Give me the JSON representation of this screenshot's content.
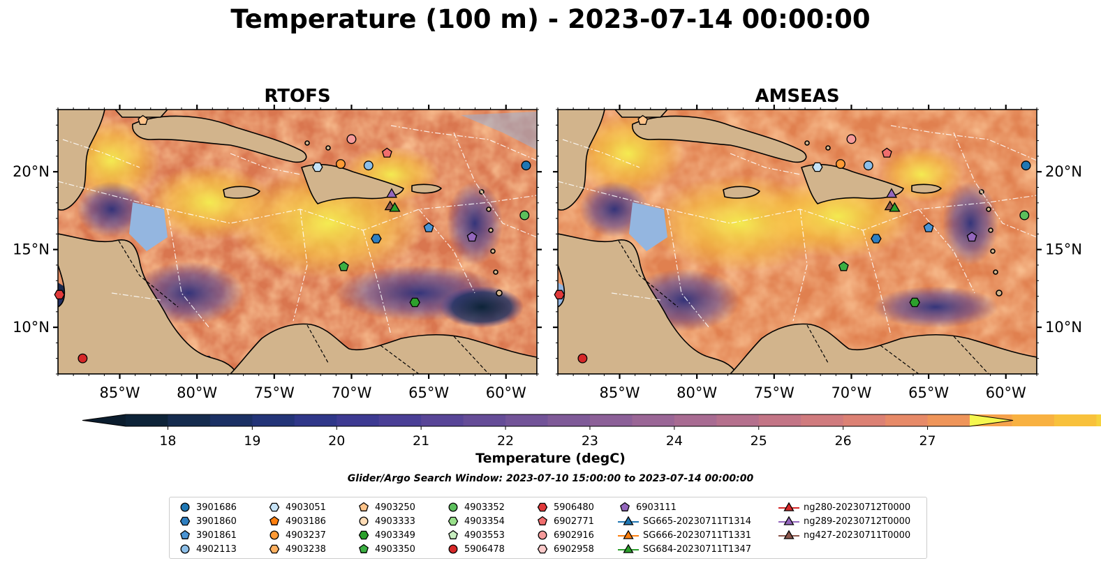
{
  "figure": {
    "title": "Temperature (100 m) - 2023-07-14 00:00:00",
    "search_window": "Glider/Argo Search Window: 2023-07-10 15:00:00 to 2023-07-14 00:00:00"
  },
  "chart_data": [
    {
      "type": "heatmap",
      "title": "RTOFS",
      "variable": "Temperature (degC)",
      "x_ticks": [
        "85°W",
        "80°W",
        "75°W",
        "70°W",
        "65°W",
        "60°W"
      ],
      "y_ticks": [
        "10°N",
        "15°N",
        "20°N"
      ],
      "x_tick_values": [
        -85,
        -80,
        -75,
        -70,
        -65,
        -60
      ],
      "y_tick_values": [
        10,
        15,
        20
      ],
      "xlim": [
        -89,
        -58
      ],
      "ylim": [
        7,
        24
      ],
      "y_axis_side": "left",
      "markers": [
        {
          "id": "3901686",
          "lon": -58.7,
          "lat": 20.4
        },
        {
          "id": "4902113",
          "lon": -68.9,
          "lat": 20.4
        },
        {
          "id": "4903237",
          "lon": -70.7,
          "lat": 20.5
        },
        {
          "id": "6902916",
          "lon": -70.0,
          "lat": 22.1
        },
        {
          "id": "4903051",
          "lon": -72.2,
          "lat": 20.3
        },
        {
          "id": "4903250",
          "lon": -83.5,
          "lat": 23.3
        },
        {
          "id": "6902771",
          "lon": -67.7,
          "lat": 21.2
        },
        {
          "id": "6903111",
          "lon": -62.2,
          "lat": 15.8
        },
        {
          "id": "3901861",
          "lon": -65.0,
          "lat": 16.4
        },
        {
          "id": "3901860",
          "lon": -68.4,
          "lat": 15.7
        },
        {
          "id": "4903350",
          "lon": -70.5,
          "lat": 13.9
        },
        {
          "id": "4903349",
          "lon": -65.9,
          "lat": 11.6
        },
        {
          "id": "4903352",
          "lon": -58.8,
          "lat": 17.2
        },
        {
          "id": "5906478",
          "lon": -87.4,
          "lat": 8.0
        },
        {
          "id": "5906480",
          "lon": -88.9,
          "lat": 12.1
        },
        {
          "id": "ng289-20230712T0000",
          "lon": -67.4,
          "lat": 18.6
        },
        {
          "id": "ng427-20230711T0000",
          "lon": -67.5,
          "lat": 17.8
        },
        {
          "id": "SG684-20230711T1347",
          "lon": -67.2,
          "lat": 17.7
        }
      ]
    },
    {
      "type": "heatmap",
      "title": "AMSEAS",
      "variable": "Temperature (degC)",
      "x_ticks": [
        "85°W",
        "80°W",
        "75°W",
        "70°W",
        "65°W",
        "60°W"
      ],
      "y_ticks": [
        "10°N",
        "15°N",
        "20°N"
      ],
      "x_tick_values": [
        -85,
        -80,
        -75,
        -70,
        -65,
        -60
      ],
      "y_tick_values": [
        10,
        15,
        20
      ],
      "xlim": [
        -89,
        -58
      ],
      "ylim": [
        7,
        24
      ],
      "y_axis_side": "right",
      "markers": [
        {
          "id": "3901686",
          "lon": -58.7,
          "lat": 20.4
        },
        {
          "id": "4902113",
          "lon": -68.9,
          "lat": 20.4
        },
        {
          "id": "4903237",
          "lon": -70.7,
          "lat": 20.5
        },
        {
          "id": "6902916",
          "lon": -70.0,
          "lat": 22.1
        },
        {
          "id": "4903051",
          "lon": -72.2,
          "lat": 20.3
        },
        {
          "id": "4903250",
          "lon": -83.5,
          "lat": 23.3
        },
        {
          "id": "6902771",
          "lon": -67.7,
          "lat": 21.2
        },
        {
          "id": "6903111",
          "lon": -62.2,
          "lat": 15.8
        },
        {
          "id": "3901861",
          "lon": -65.0,
          "lat": 16.4
        },
        {
          "id": "3901860",
          "lon": -68.4,
          "lat": 15.7
        },
        {
          "id": "4903350",
          "lon": -70.5,
          "lat": 13.9
        },
        {
          "id": "4903349",
          "lon": -65.9,
          "lat": 11.6
        },
        {
          "id": "4903352",
          "lon": -58.8,
          "lat": 17.2
        },
        {
          "id": "5906478",
          "lon": -87.4,
          "lat": 8.0
        },
        {
          "id": "5906480",
          "lon": -88.9,
          "lat": 12.1
        },
        {
          "id": "ng289-20230712T0000",
          "lon": -67.4,
          "lat": 18.6
        },
        {
          "id": "ng427-20230711T0000",
          "lon": -67.5,
          "lat": 17.8
        },
        {
          "id": "SG684-20230711T1347",
          "lon": -67.2,
          "lat": 17.7
        }
      ]
    }
  ],
  "colorbar": {
    "label": "Temperature (degC)",
    "min": 17.5,
    "max": 27.5,
    "step": 0.5,
    "ticks": [
      "18",
      "19",
      "20",
      "21",
      "22",
      "23",
      "24",
      "25",
      "26",
      "27"
    ],
    "tick_values": [
      18,
      19,
      20,
      21,
      22,
      23,
      24,
      25,
      26,
      27
    ],
    "colors": [
      "#0d2338",
      "#152b4e",
      "#1b3064",
      "#233478",
      "#2f3789",
      "#3d3a92",
      "#4a3f96",
      "#584597",
      "#654c97",
      "#725398",
      "#7f5a98",
      "#8c6098",
      "#9a6696",
      "#a86b92",
      "#b5708d",
      "#c37586",
      "#d07b7e",
      "#dc8174",
      "#e78a68",
      "#ef955a",
      "#f5a24c",
      "#f8b141",
      "#f8c13c",
      "#f6d23e",
      "#f1e445"
    ]
  },
  "legend": {
    "columns": [
      [
        {
          "label": "3901686",
          "marker": "circle",
          "color": "#1f77b4"
        },
        {
          "label": "3901860",
          "marker": "hexagon",
          "color": "#2f7fc0"
        },
        {
          "label": "3901861",
          "marker": "pentagon",
          "color": "#4a94d4"
        },
        {
          "label": "4902113",
          "marker": "circle",
          "color": "#8dbfe8"
        }
      ],
      [
        {
          "label": "4903051",
          "marker": "hexagon",
          "color": "#c6e3f7"
        },
        {
          "label": "4903186",
          "marker": "pentagon",
          "color": "#ff7f0e"
        },
        {
          "label": "4903237",
          "marker": "circle",
          "color": "#ff9a35"
        },
        {
          "label": "4903238",
          "marker": "hexagon",
          "color": "#ffb060"
        }
      ],
      [
        {
          "label": "4903250",
          "marker": "pentagon",
          "color": "#ffc48a"
        },
        {
          "label": "4903333",
          "marker": "circle",
          "color": "#ffdcb6"
        },
        {
          "label": "4903349",
          "marker": "hexagon",
          "color": "#2ca02c"
        },
        {
          "label": "4903350",
          "marker": "pentagon",
          "color": "#3cb043"
        }
      ],
      [
        {
          "label": "4903352",
          "marker": "circle",
          "color": "#5cbf5c"
        },
        {
          "label": "4903354",
          "marker": "hexagon",
          "color": "#98df8a"
        },
        {
          "label": "4903553",
          "marker": "pentagon",
          "color": "#c8efc0"
        },
        {
          "label": "5906478",
          "marker": "circle",
          "color": "#d62728"
        }
      ],
      [
        {
          "label": "5906480",
          "marker": "hexagon",
          "color": "#e0393a"
        },
        {
          "label": "6902771",
          "marker": "pentagon",
          "color": "#f06e6e"
        },
        {
          "label": "6902916",
          "marker": "circle",
          "color": "#f59a9a"
        },
        {
          "label": "6902958",
          "marker": "hexagon",
          "color": "#fcc9c9"
        }
      ],
      [
        {
          "label": "6903111",
          "marker": "pentagon",
          "color": "#9467bd"
        },
        {
          "label": "SG665-20230711T1314",
          "marker": "triangle-line",
          "color": "#1f77b4"
        },
        {
          "label": "SG666-20230711T1331",
          "marker": "triangle-line",
          "color": "#ff7f0e"
        },
        {
          "label": "SG684-20230711T1347",
          "marker": "triangle-line",
          "color": "#2ca02c"
        }
      ],
      [
        {
          "label": "ng280-20230712T0000",
          "marker": "triangle-line",
          "color": "#d62728"
        },
        {
          "label": "ng289-20230712T0000",
          "marker": "triangle-line",
          "color": "#9467bd"
        },
        {
          "label": "ng427-20230711T0000",
          "marker": "triangle-line",
          "color": "#8c564b"
        }
      ]
    ]
  },
  "colors": {
    "land": "#d2b48c",
    "shallow_water": "#94b6e0",
    "warm": "#f2e84a",
    "mid": "#e8844f",
    "cool": "#3e3780"
  }
}
